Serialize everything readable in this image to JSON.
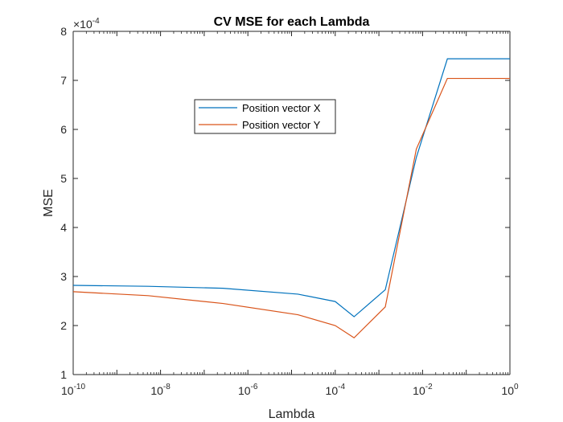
{
  "chart_data": {
    "type": "line",
    "title": "CV MSE for each Lambda",
    "xlabel": "Lambda",
    "ylabel": "MSE",
    "xscale": "log",
    "xlim": [
      1e-10,
      1
    ],
    "ylim": [
      1,
      8
    ],
    "y_multiplier_label": "×10",
    "y_multiplier_exp": "-4",
    "x_tick_labels": [
      {
        "base": "10",
        "exp": "-10",
        "value": 1e-10
      },
      {
        "base": "10",
        "exp": "-8",
        "value": 1e-08
      },
      {
        "base": "10",
        "exp": "-6",
        "value": 1e-06
      },
      {
        "base": "10",
        "exp": "-4",
        "value": 0.0001
      },
      {
        "base": "10",
        "exp": "-2",
        "value": 0.01
      },
      {
        "base": "10",
        "exp": "0",
        "value": 1
      }
    ],
    "y_ticks": [
      1,
      2,
      3,
      4,
      5,
      6,
      7,
      8
    ],
    "y_tick_labels": [
      "1",
      "2",
      "3",
      "4",
      "5",
      "6",
      "7",
      "8"
    ],
    "legend_position": "upper-left-center",
    "grid": false,
    "series": [
      {
        "name": "Position vector X",
        "color": "#0072BD",
        "x": [
          1e-10,
          5.2e-09,
          2.7e-07,
          1.4e-05,
          0.0001,
          0.00027,
          0.0014,
          0.0072,
          0.037,
          1
        ],
        "y": [
          2.82,
          2.8,
          2.76,
          2.64,
          2.49,
          2.18,
          2.73,
          5.43,
          7.44,
          7.44
        ]
      },
      {
        "name": "Position vector Y",
        "color": "#D95319",
        "x": [
          1e-10,
          5.2e-09,
          2.7e-07,
          1.4e-05,
          0.0001,
          0.00027,
          0.0014,
          0.0072,
          0.037,
          1
        ],
        "y": [
          2.69,
          2.61,
          2.45,
          2.22,
          2.0,
          1.75,
          2.38,
          5.6,
          7.04,
          7.04
        ]
      }
    ]
  }
}
